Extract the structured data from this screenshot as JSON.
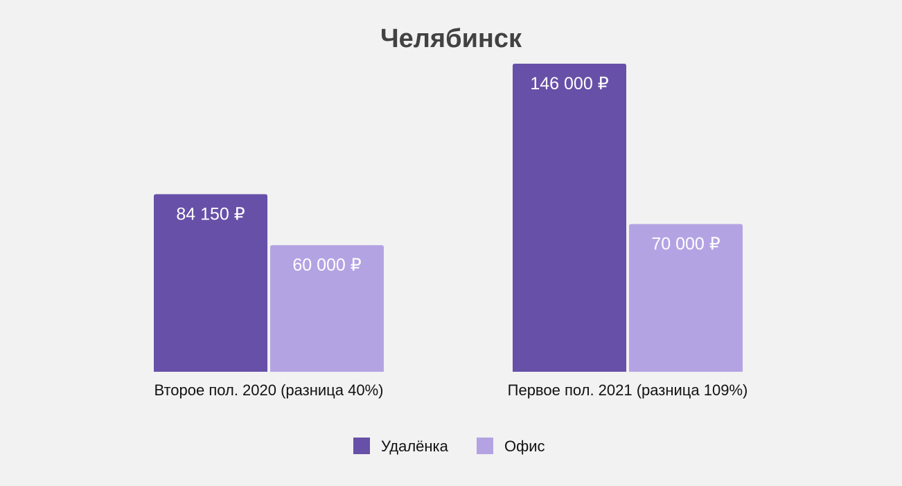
{
  "chart_data": {
    "type": "bar",
    "title": "Челябинск",
    "categories": [
      "Второе пол. 2020 (разница 40%)",
      "Первое пол. 2021 (разница 109%)"
    ],
    "series": [
      {
        "name": "Удалёнка",
        "color": "#6750a8",
        "values": [
          84150,
          146000
        ],
        "labels": [
          "84 150 ₽",
          "146 000 ₽"
        ]
      },
      {
        "name": "Офис",
        "color": "#b4a3e3",
        "values": [
          60000,
          70000
        ],
        "labels": [
          "60 000 ₽",
          "70 000 ₽"
        ]
      }
    ],
    "ylim": [
      0,
      146000
    ],
    "xlabel": "",
    "ylabel": "",
    "grid": false,
    "legend": "bottom"
  }
}
